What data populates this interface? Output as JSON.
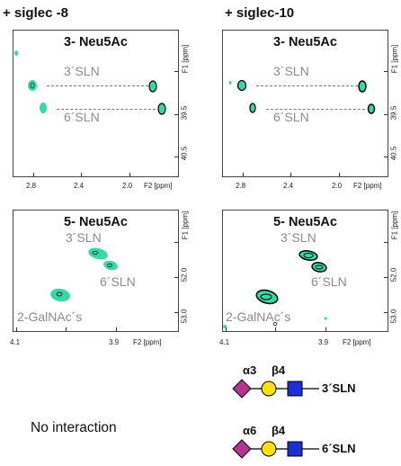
{
  "columns": {
    "left": "+ siglec -8",
    "right": "+ siglec-10"
  },
  "panels": {
    "neu3_title": "3- Neu5Ac",
    "neu5_title": "5- Neu5Ac",
    "label_3sln": "3´SLN",
    "label_6sln": "6´SLN",
    "label_galnac": "2-GalNAc´s"
  },
  "axes": {
    "top": {
      "x_ticks": [
        "2.8",
        "2.4",
        "2.0"
      ],
      "x_unit": "F2 [ppm]",
      "y_ticks": [
        "39.5",
        "40.5"
      ],
      "y_unit": "F1 [ppm]"
    },
    "bottom": {
      "x_ticks": [
        "4.1",
        "3.9"
      ],
      "x_unit": "F2 [ppm]",
      "y_ticks": [
        "52.0",
        "53.0"
      ],
      "y_unit": "F1 [ppm]"
    }
  },
  "footer": {
    "no_interaction": "No interaction",
    "glycan_3": {
      "linkage_a": "α3",
      "linkage_b": "β4",
      "name": "3´SLN"
    },
    "glycan_6": {
      "linkage_a": "α6",
      "linkage_b": "β4",
      "name": "6´SLN"
    }
  },
  "colors": {
    "peak_fill": "#34d9a4",
    "peak_outline": "#000000",
    "neu5ac": "#b5348f",
    "gal": "#ffe200",
    "glcnac": "#1a2fd6"
  }
}
